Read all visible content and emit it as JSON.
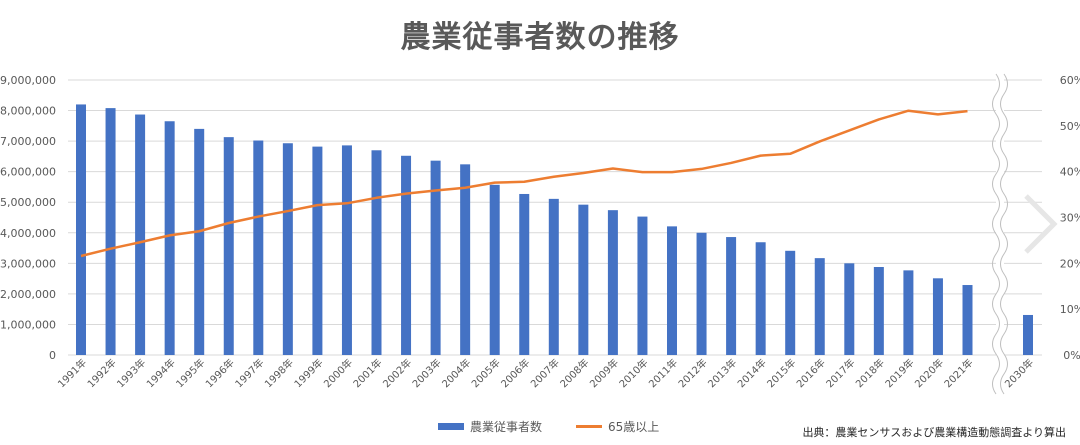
{
  "chart_data": {
    "type": "bar",
    "title": "農業従事者数の推移",
    "categories": [
      "1991年",
      "1992年",
      "1993年",
      "1994年",
      "1995年",
      "1996年",
      "1997年",
      "1998年",
      "1999年",
      "2000年",
      "2001年",
      "2002年",
      "2003年",
      "2004年",
      "2005年",
      "2006年",
      "2007年",
      "2008年",
      "2009年",
      "2010年",
      "2011年",
      "2012年",
      "2013年",
      "2014年",
      "2015年",
      "2016年",
      "2017年",
      "2018年",
      "2019年",
      "2020年",
      "2021年",
      "2030年"
    ],
    "series": [
      {
        "name": "農業従事者数",
        "type": "bar",
        "axis": "left",
        "color": "#4472c4",
        "values": [
          8200000,
          8080000,
          7870000,
          7650000,
          7400000,
          7130000,
          7020000,
          6930000,
          6820000,
          6860000,
          6700000,
          6520000,
          6360000,
          6240000,
          5570000,
          5270000,
          5110000,
          4920000,
          4740000,
          4530000,
          4210000,
          4000000,
          3860000,
          3690000,
          3410000,
          3170000,
          3000000,
          2880000,
          2770000,
          2510000,
          2290000,
          1310000
        ]
      },
      {
        "name": "65歳以上",
        "type": "line",
        "axis": "right",
        "color": "#ed7d31",
        "values": [
          21.6,
          23.2,
          24.6,
          26.1,
          27.0,
          28.8,
          30.2,
          31.4,
          32.7,
          33.1,
          34.3,
          35.2,
          35.9,
          36.5,
          37.6,
          37.8,
          38.9,
          39.7,
          40.7,
          39.9,
          39.9,
          40.6,
          41.9,
          43.5,
          43.9,
          46.6,
          49.0,
          51.4,
          53.3,
          52.5,
          53.2,
          null
        ]
      }
    ],
    "y_left": {
      "min": 0,
      "max": 9000000,
      "step": 1000000,
      "tick_labels": [
        "0",
        "1,000,000",
        "2,000,000",
        "3,000,000",
        "4,000,000",
        "5,000,000",
        "6,000,000",
        "7,000,000",
        "8,000,000",
        "9,000,000"
      ]
    },
    "y_right": {
      "min": 0,
      "max": 60,
      "step": 10,
      "tick_labels": [
        "0%",
        "10%",
        "20%",
        "30%",
        "40%",
        "50%",
        "60%"
      ]
    },
    "axis_break": "between 2021年 and 2030年",
    "grid": true,
    "legend": [
      "農業従事者数",
      "65歳以上"
    ],
    "legend_position": "bottom",
    "source": "出典：農業センサスおよび農業構造動態調査より算出"
  },
  "colors": {
    "bar": "#4472c4",
    "line": "#ed7d31",
    "grid": "#d9d9d9",
    "text": "#595959"
  },
  "icons": {
    "next": "chevron-right-icon"
  }
}
